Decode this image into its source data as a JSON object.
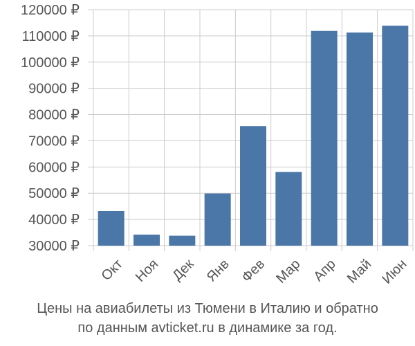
{
  "chart_data": {
    "type": "bar",
    "categories": [
      "Окт",
      "Ноя",
      "Дек",
      "Янв",
      "Фев",
      "Мар",
      "Апр",
      "Май",
      "Июн"
    ],
    "values": [
      43200,
      34200,
      33800,
      49900,
      75600,
      58100,
      111900,
      111300,
      113900
    ],
    "ylim": [
      30000,
      120000
    ],
    "yticks": [
      30000,
      40000,
      50000,
      60000,
      70000,
      80000,
      90000,
      100000,
      110000,
      120000
    ],
    "ytick_labels": [
      "30000 ₽",
      "40000 ₽",
      "50000 ₽",
      "60000 ₽",
      "70000 ₽",
      "80000 ₽",
      "90000 ₽",
      "100000 ₽",
      "110000 ₽",
      "120000 ₽"
    ],
    "grid": true,
    "bar_color": "#4a76a8",
    "grid_color": "#cccccc"
  },
  "caption": {
    "line1": "Цены на авиабилеты из Тюмени в Италию и обратно",
    "line2": "по данным avticket.ru в динамике за год."
  }
}
